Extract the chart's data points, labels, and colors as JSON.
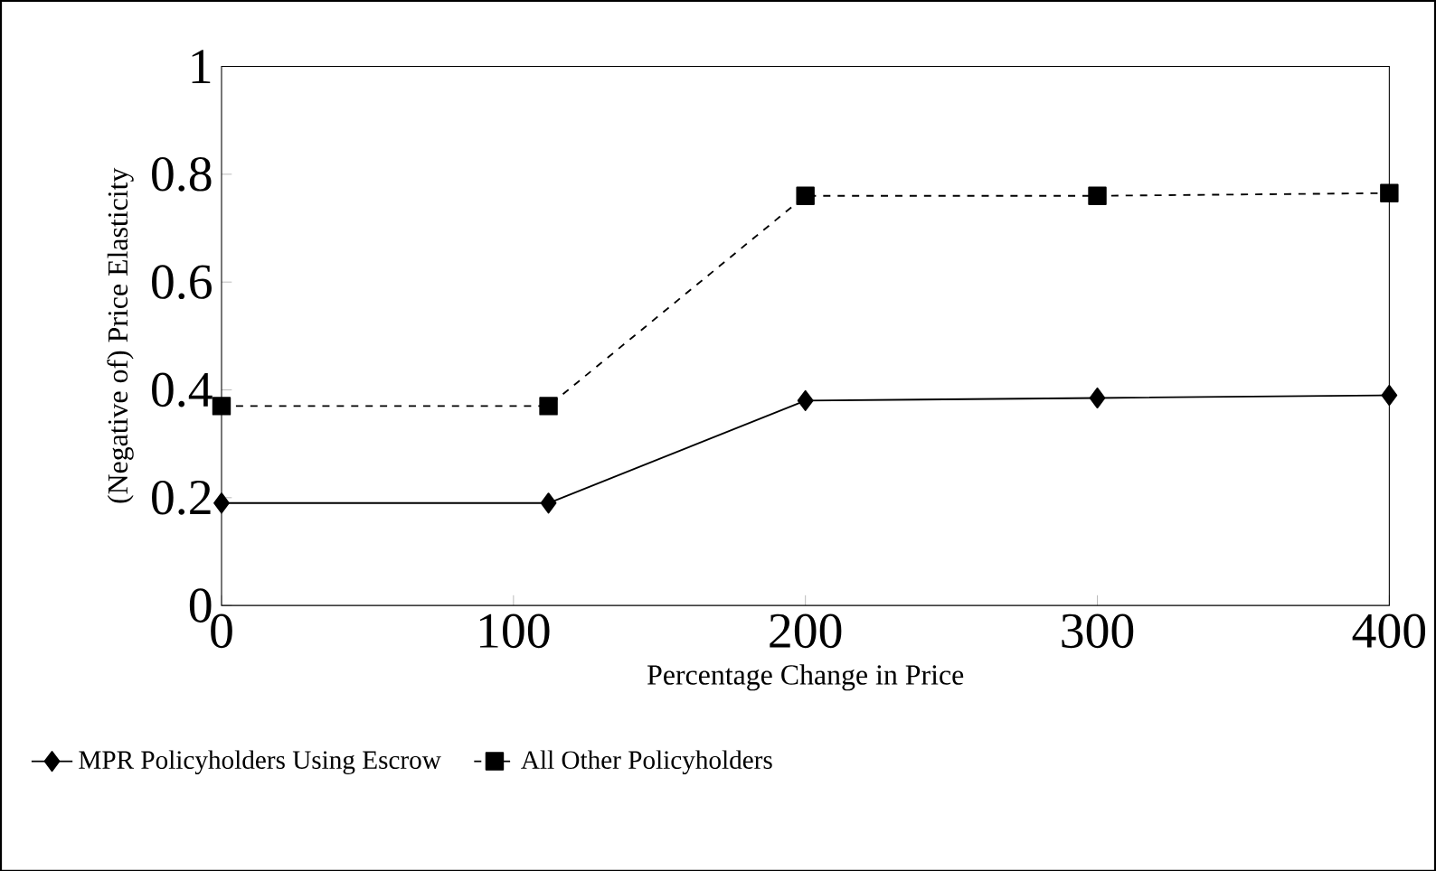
{
  "chart_data": {
    "type": "line",
    "xlabel": "Percentage Change in Price",
    "ylabel": "(Negative of) Price Elasticity",
    "xlim": [
      0,
      400
    ],
    "xticks": [
      0,
      100,
      200,
      300,
      400
    ],
    "ylim": [
      0,
      1
    ],
    "yticks": [
      0,
      0.2,
      0.4,
      0.6,
      0.8,
      1
    ],
    "grid": false,
    "legend": "bottom left",
    "series": [
      {
        "name": "MPR Policyholders Using Escrow",
        "color": "#000000",
        "marker": "diamond",
        "line_style": "solid",
        "x": [
          0,
          112,
          200,
          300,
          400
        ],
        "values": [
          0.19,
          0.19,
          0.38,
          0.385,
          0.39
        ]
      },
      {
        "name": "All Other Policyholders",
        "color": "#000000",
        "marker": "square",
        "line_style": "dashed",
        "x": [
          0,
          112,
          200,
          300,
          400
        ],
        "values": [
          0.37,
          0.37,
          0.76,
          0.76,
          0.765
        ]
      }
    ]
  }
}
